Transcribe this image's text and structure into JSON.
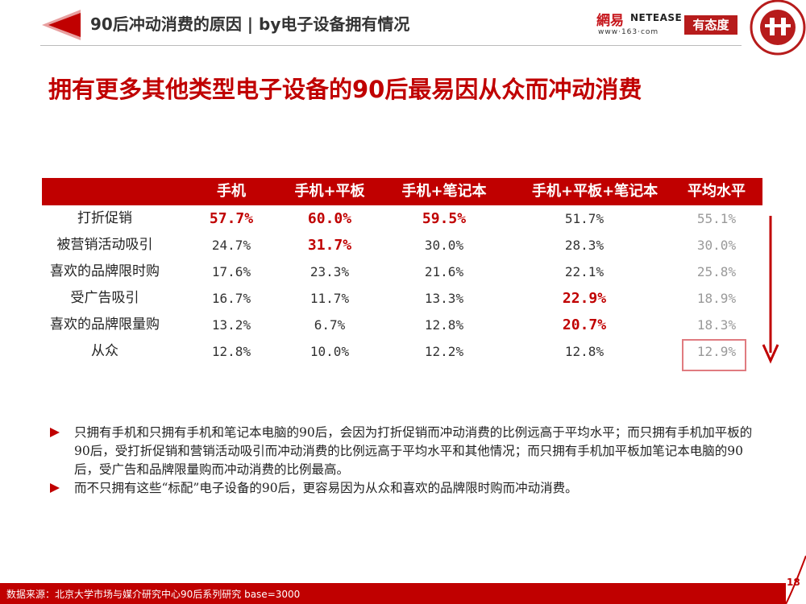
{
  "header": {
    "title": "90后冲动消费的原因 | by电子设备拥有情况",
    "logo_cn": "網易",
    "logo_en": "NETEASE",
    "logo_url": "www·163·com",
    "badge": "有态度"
  },
  "headline": "拥有更多其他类型电子设备的90后最易因从众而冲动消费",
  "table": {
    "columns": [
      "手机",
      "手机+平板",
      "手机+笔记本",
      "手机+平板+笔记本",
      "平均水平"
    ],
    "rows": [
      {
        "label": "打折促销",
        "values": [
          "57.7%",
          "60.0%",
          "59.5%",
          "51.7%",
          "55.1%"
        ]
      },
      {
        "label": "被营销活动吸引",
        "values": [
          "24.7%",
          "31.7%",
          "30.0%",
          "28.3%",
          "30.0%"
        ]
      },
      {
        "label": "喜欢的品牌限时购",
        "values": [
          "17.6%",
          "23.3%",
          "21.6%",
          "22.1%",
          "25.8%"
        ]
      },
      {
        "label": "受广告吸引",
        "values": [
          "16.7%",
          "11.7%",
          "13.3%",
          "22.9%",
          "18.9%"
        ]
      },
      {
        "label": "喜欢的品牌限量购",
        "values": [
          "13.2%",
          "6.7%",
          "12.8%",
          "20.7%",
          "18.3%"
        ]
      },
      {
        "label": "从众",
        "values": [
          "12.8%",
          "10.0%",
          "12.2%",
          "12.8%",
          "12.9%"
        ]
      }
    ]
  },
  "bullets": [
    "只拥有手机和只拥有手机和笔记本电脑的90后，会因为打折促销而冲动消费的比例远高于平均水平；而只拥有手机加平板的90后，受打折促销和营销活动吸引而冲动消费的比例远高于平均水平和其他情况；而只拥有手机加平板加笔记本电脑的90后，受广告和品牌限量购而冲动消费的比例最高。",
    "而不只拥有这些“标配”电子设备的90后，更容易因为从众和喜欢的品牌限时购而冲动消费。"
  ],
  "footer": "数据来源：北京大学市场与媒介研究中心90后系列研究 base=3000",
  "page_number": "18",
  "colors": {
    "accent": "#c00000",
    "muted": "#999999"
  }
}
